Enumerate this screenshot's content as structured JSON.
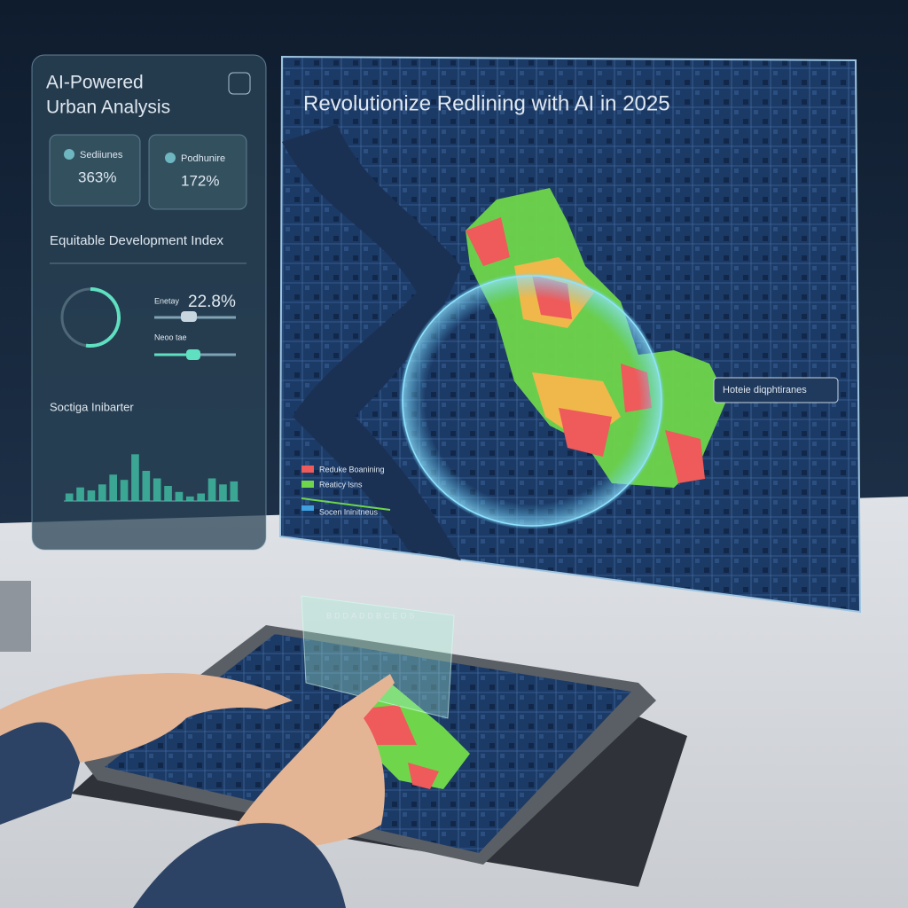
{
  "left_panel": {
    "title_line1": "AI-Powered",
    "title_line2": "Urban Analysis",
    "stats": [
      {
        "label": "Sediiunes",
        "value": "363%"
      },
      {
        "label": "Podhunire",
        "value": "172%"
      }
    ],
    "index_title": "Equitable Development Index",
    "sliders": [
      {
        "label": "Enetay",
        "value": "22.8%"
      },
      {
        "label": "Neoo tae"
      }
    ],
    "chart_title": "Soctiga Inibarter",
    "chart": {
      "type": "bar",
      "values": [
        10,
        18,
        14,
        22,
        35,
        28,
        62,
        40,
        30,
        20,
        12,
        6,
        10,
        30,
        22,
        26
      ],
      "ylim": [
        0,
        100
      ],
      "color": "#3fb8a0"
    }
  },
  "map": {
    "title": "Revolutionize Redlining with AI in 2025",
    "callout": "Hoteie diqphtiranes",
    "legend": [
      "Reduke Boanining",
      "Reaticy lsns",
      "Socen lninitneus"
    ]
  },
  "tablet": {
    "overlay": "BDDADDBCEOS"
  }
}
